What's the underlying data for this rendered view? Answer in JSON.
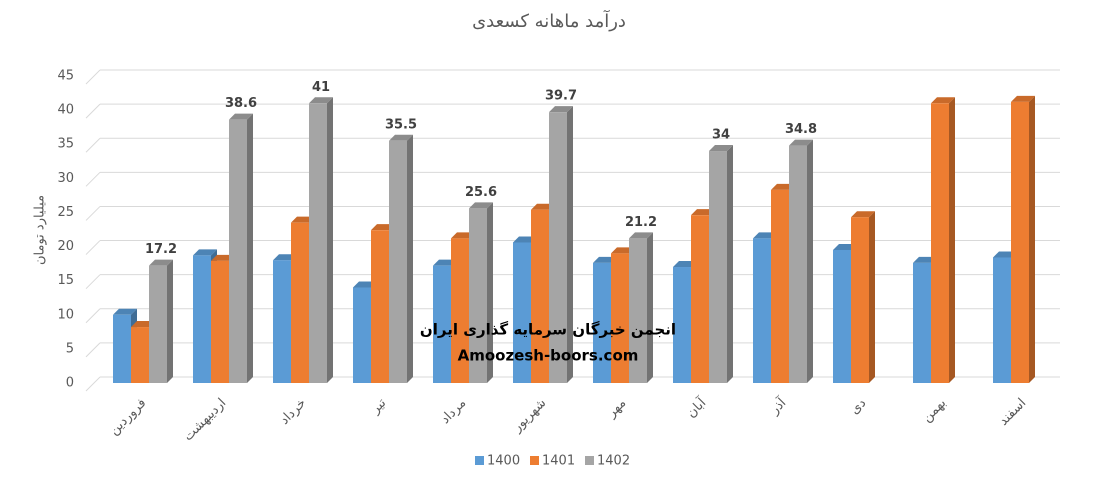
{
  "chart_data": {
    "type": "bar",
    "title": "درآمد ماهانه کسعدی",
    "y_label": "میلیارد تومان",
    "categories": [
      "فروردین",
      "اردیبهشت",
      "خرداد",
      "تیر",
      "مرداد",
      "شهریور",
      "مهر",
      "آبان",
      "آذر",
      "دی",
      "بهمن",
      "اسفند"
    ],
    "series": [
      {
        "name": "1400",
        "color": "#5b9bd5",
        "values": [
          10,
          18.7,
          18,
          14,
          17.2,
          20.6,
          17.6,
          17,
          21.2,
          19.5,
          17.6,
          18.4
        ]
      },
      {
        "name": "1401",
        "color": "#ed7d31",
        "values": [
          8.2,
          17.9,
          23.5,
          22.4,
          21.2,
          25.4,
          19,
          24.6,
          28.3,
          24.3,
          41,
          41.2
        ]
      },
      {
        "name": "1402",
        "color": "#a5a5a5",
        "values": [
          17.2,
          38.6,
          41,
          35.5,
          25.6,
          39.7,
          21.2,
          34,
          34.8,
          null,
          null,
          null
        ],
        "data_labels": true
      }
    ],
    "ylim": [
      0,
      45
    ],
    "yticks": [
      0,
      5,
      10,
      15,
      20,
      25,
      30,
      35,
      40,
      45
    ],
    "grid": true,
    "legend": "bottom",
    "annotations": [
      "انجمن خبرگان سرمایه گذاری ایران",
      "Amoozesh-boors.com"
    ]
  }
}
